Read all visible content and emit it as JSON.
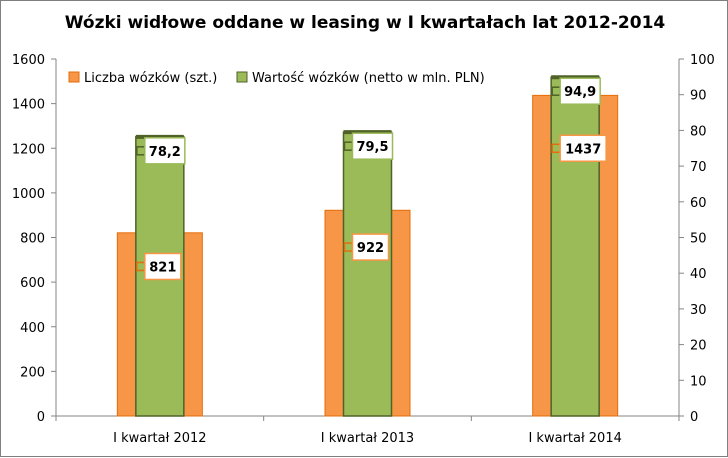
{
  "chart_data": {
    "type": "bar",
    "title": "Wózki widłowe oddane w leasing w I kwartałach lat 2012-2014",
    "categories": [
      "I kwartał 2012",
      "I kwartał 2013",
      "I kwartał 2014"
    ],
    "series": [
      {
        "name": "Liczba wózków (szt.)",
        "axis": "left",
        "color": "#f79646",
        "border": "#e46c0a",
        "values": [
          821,
          922,
          1437
        ],
        "labels": [
          "821",
          "922",
          "1437"
        ]
      },
      {
        "name": "Wartość wózków (netto w mln. PLN)",
        "axis": "right",
        "color": "#9bbb59",
        "border": "#4f6228",
        "values": [
          78.2,
          79.5,
          94.9
        ],
        "labels": [
          "78,2",
          "79,5",
          "94,9"
        ]
      }
    ],
    "y_left": {
      "min": 0,
      "max": 1600,
      "step": 200,
      "ticks": [
        "0",
        "200",
        "400",
        "600",
        "800",
        "1000",
        "1200",
        "1400",
        "1600"
      ]
    },
    "y_right": {
      "min": 0,
      "max": 100,
      "step": 10,
      "ticks": [
        "0",
        "10",
        "20",
        "30",
        "40",
        "50",
        "60",
        "70",
        "80",
        "90",
        "100"
      ]
    },
    "legend_position": "top-left",
    "grid": false
  }
}
